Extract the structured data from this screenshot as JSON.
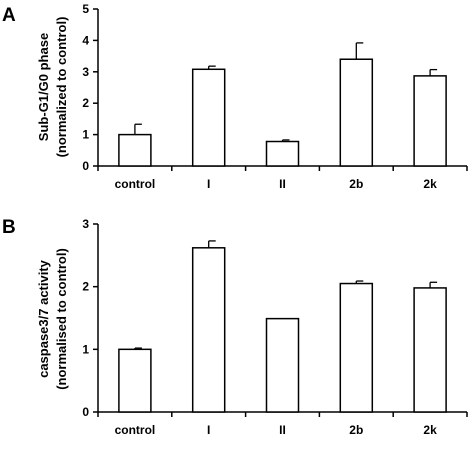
{
  "chart_data": [
    {
      "panel": "A",
      "type": "bar",
      "categories": [
        "control",
        "I",
        "II",
        "2b",
        "2k"
      ],
      "values": [
        1.0,
        3.08,
        0.78,
        3.4,
        2.87
      ],
      "errors": [
        0.33,
        0.1,
        0.05,
        0.52,
        0.2
      ],
      "ylabel_line1": "Sub-G1/G0 phase",
      "ylabel_line2": "(normalized to control)",
      "xlabel": "",
      "ylim": [
        0,
        5
      ],
      "yticks": [
        "0",
        "1",
        "2",
        "3",
        "4",
        "5"
      ],
      "grid": false,
      "bar_fill": "#ffffff",
      "bar_stroke": "#000000"
    },
    {
      "panel": "B",
      "type": "bar",
      "categories": [
        "control",
        "I",
        "II",
        "2b",
        "2k"
      ],
      "values": [
        1.0,
        2.62,
        1.49,
        2.05,
        1.98
      ],
      "errors": [
        0.02,
        0.11,
        0.0,
        0.04,
        0.09
      ],
      "ylabel_line1": "caspase3/7 activity",
      "ylabel_line2": "(normalised to control)",
      "xlabel": "",
      "ylim": [
        0,
        3
      ],
      "yticks": [
        "0",
        "1",
        "2",
        "3"
      ],
      "grid": false,
      "bar_fill": "#ffffff",
      "bar_stroke": "#000000"
    }
  ]
}
